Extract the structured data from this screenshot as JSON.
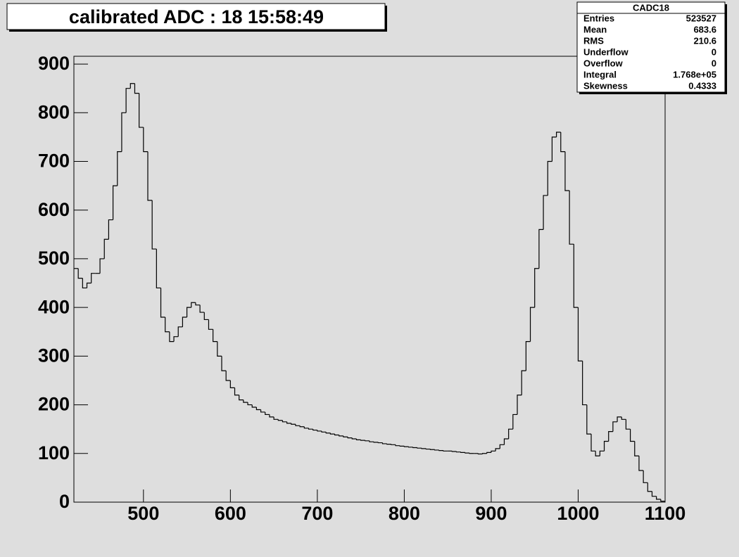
{
  "chart_data": {
    "type": "histogram",
    "title": "calibrated ADC :  18  15:58:49",
    "color": "#000000",
    "xlim": [
      420,
      1100
    ],
    "ylim": [
      0,
      916
    ],
    "xticks": [
      500,
      600,
      700,
      800,
      900,
      1000,
      1100
    ],
    "yticks": [
      0,
      100,
      200,
      300,
      400,
      500,
      600,
      700,
      800,
      900
    ],
    "bins": [
      420,
      425,
      430,
      435,
      440,
      445,
      450,
      455,
      460,
      465,
      470,
      475,
      480,
      485,
      490,
      495,
      500,
      505,
      510,
      515,
      520,
      525,
      530,
      535,
      540,
      545,
      550,
      555,
      560,
      565,
      570,
      575,
      580,
      585,
      590,
      595,
      600,
      605,
      610,
      615,
      620,
      625,
      630,
      635,
      640,
      645,
      650,
      655,
      660,
      665,
      670,
      675,
      680,
      685,
      690,
      695,
      700,
      705,
      710,
      715,
      720,
      725,
      730,
      735,
      740,
      745,
      750,
      755,
      760,
      765,
      770,
      775,
      780,
      785,
      790,
      795,
      800,
      805,
      810,
      815,
      820,
      825,
      830,
      835,
      840,
      845,
      850,
      855,
      860,
      865,
      870,
      875,
      880,
      885,
      890,
      895,
      900,
      905,
      910,
      915,
      920,
      925,
      930,
      935,
      940,
      945,
      950,
      955,
      960,
      965,
      970,
      975,
      980,
      985,
      990,
      995,
      1000,
      1005,
      1010,
      1015,
      1020,
      1025,
      1030,
      1035,
      1040,
      1045,
      1050,
      1055,
      1060,
      1065,
      1070,
      1075,
      1080,
      1085,
      1090,
      1095,
      1100
    ],
    "values": [
      480,
      460,
      440,
      450,
      470,
      470,
      500,
      540,
      580,
      650,
      720,
      800,
      850,
      860,
      840,
      770,
      720,
      620,
      520,
      440,
      380,
      350,
      330,
      340,
      360,
      380,
      400,
      410,
      405,
      390,
      375,
      355,
      330,
      300,
      270,
      250,
      235,
      220,
      210,
      205,
      200,
      195,
      190,
      185,
      180,
      175,
      170,
      168,
      165,
      162,
      160,
      157,
      155,
      152,
      150,
      148,
      146,
      144,
      142,
      140,
      138,
      136,
      134,
      132,
      130,
      128,
      127,
      126,
      124,
      123,
      122,
      120,
      119,
      118,
      116,
      115,
      114,
      113,
      112,
      111,
      110,
      109,
      108,
      107,
      106,
      105,
      105,
      104,
      103,
      102,
      101,
      100,
      100,
      99,
      100,
      102,
      105,
      110,
      118,
      130,
      150,
      180,
      220,
      270,
      330,
      400,
      480,
      560,
      630,
      700,
      750,
      760,
      720,
      640,
      530,
      400,
      290,
      200,
      140,
      105,
      95,
      105,
      125,
      145,
      165,
      175,
      170,
      150,
      125,
      95,
      65,
      40,
      22,
      12,
      6,
      2
    ],
    "stats": {
      "title": "CADC18",
      "rows": [
        [
          "Entries",
          "523527"
        ],
        [
          "Mean",
          "683.6"
        ],
        [
          "RMS",
          "210.6"
        ],
        [
          "Underflow",
          "0"
        ],
        [
          "Overflow",
          "0"
        ],
        [
          "Integral",
          "1.768e+05"
        ],
        [
          "Skewness",
          "0.4333"
        ]
      ]
    }
  }
}
